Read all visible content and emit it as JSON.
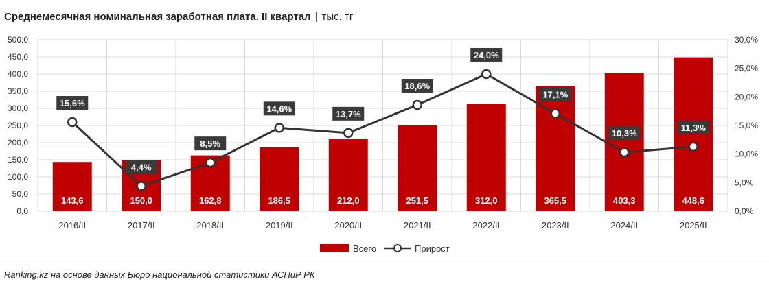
{
  "title": {
    "main": "Среднемесячная номинальная заработная плата. II квартал",
    "separator": "|",
    "unit": "тыс. тг"
  },
  "source": "Ranking.kz на основе данных Бюро национальной статистики АСПиР РК",
  "colors": {
    "bar": "#c00000",
    "line": "#333333",
    "label_bg": "#3a3a3a",
    "grid": "#d9d9d9"
  },
  "chart_data": {
    "type": "bar",
    "categories": [
      "2016/II",
      "2017/II",
      "2018/II",
      "2019/II",
      "2020/II",
      "2021/II",
      "2022/II",
      "2023/II",
      "2024/II",
      "2025/II"
    ],
    "series": [
      {
        "name": "Всего",
        "type": "bar",
        "axis": "left",
        "values": [
          143.6,
          150.0,
          162.8,
          186.5,
          212.0,
          251.5,
          312.0,
          365.5,
          403.3,
          448.6
        ],
        "labels": [
          "143,6",
          "150,0",
          "162,8",
          "186,5",
          "212,0",
          "251,5",
          "312,0",
          "365,5",
          "403,3",
          "448,6"
        ]
      },
      {
        "name": "Прирост",
        "type": "line",
        "axis": "right",
        "values": [
          15.6,
          4.4,
          8.5,
          14.6,
          13.7,
          18.6,
          24.0,
          17.1,
          10.3,
          11.3
        ],
        "labels": [
          "15,6%",
          "4,4%",
          "8,5%",
          "14,6%",
          "13,7%",
          "18,6%",
          "24,0%",
          "17,1%",
          "10,3%",
          "11,3%"
        ]
      }
    ],
    "y_left": {
      "min": 0,
      "max": 500,
      "step": 50,
      "ticks": [
        "0,0",
        "50,0",
        "100,0",
        "150,0",
        "200,0",
        "250,0",
        "300,0",
        "350,0",
        "400,0",
        "450,0",
        "500,0"
      ]
    },
    "y_right": {
      "min": 0,
      "max": 30,
      "step": 5,
      "ticks": [
        "0,0%",
        "5,0%",
        "10,0%",
        "15,0%",
        "20,0%",
        "25,0%",
        "30,0%"
      ]
    },
    "legend": [
      "Всего",
      "Прирост"
    ],
    "legend_position": "bottom",
    "grid": true
  }
}
